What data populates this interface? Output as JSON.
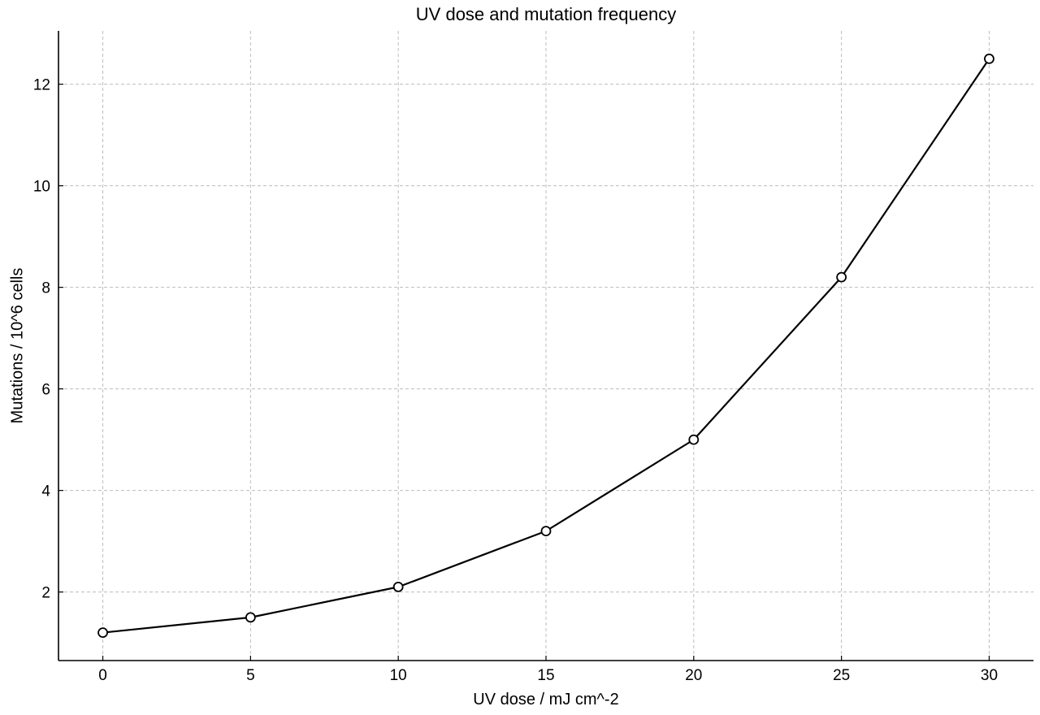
{
  "chart_data": {
    "type": "line",
    "title": "UV dose and mutation frequency",
    "xlabel": "UV dose / mJ cm^-2",
    "ylabel": "Mutations / 10^6 cells",
    "x": [
      0,
      5,
      10,
      15,
      20,
      25,
      30
    ],
    "series": [
      {
        "values": [
          1.2,
          1.5,
          2.1,
          3.2,
          5.0,
          8.2,
          12.5
        ],
        "color": "#000000",
        "marker": "open-circle"
      }
    ],
    "x_ticks": [
      0,
      5,
      10,
      15,
      20,
      25,
      30
    ],
    "y_ticks": [
      2,
      4,
      6,
      8,
      10,
      12
    ],
    "xlim": [
      -1.5,
      31.5
    ],
    "ylim": [
      0.65,
      13.05
    ],
    "grid": true,
    "grid_style": "dashed"
  }
}
